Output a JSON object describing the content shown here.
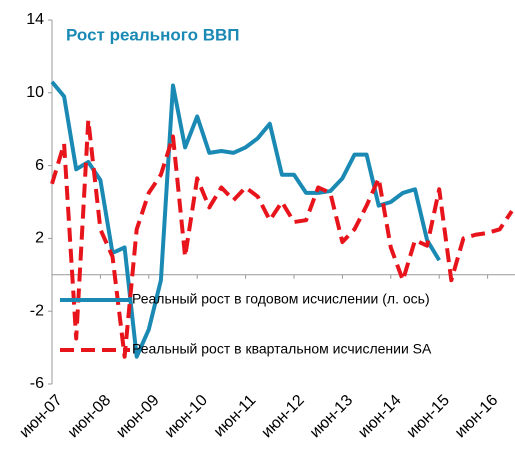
{
  "chart_data": {
    "type": "line",
    "title": "Рост реального ВВП",
    "categories": [
      "июн-07",
      null,
      null,
      null,
      "июн-08",
      null,
      null,
      null,
      "июн-09",
      null,
      null,
      null,
      "июн-10",
      null,
      null,
      null,
      "июн-11",
      null,
      null,
      null,
      "июн-12",
      null,
      null,
      null,
      "июн-13",
      null,
      null,
      null,
      "июн-14",
      null,
      null,
      null,
      "июн-15",
      null,
      null,
      null,
      "июн-16",
      null,
      null
    ],
    "series": [
      {
        "name": "Реальный рост в годовом исчислении (л. ось)",
        "color": "#1a8ab4",
        "dash": false,
        "values": [
          10.6,
          9.8,
          5.8,
          6.2,
          5.2,
          1.2,
          1.5,
          -4.5,
          -3.0,
          -0.3,
          10.4,
          7.0,
          8.7,
          6.7,
          6.8,
          6.7,
          7.0,
          7.5,
          8.3,
          5.5,
          5.5,
          4.5,
          4.5,
          4.6,
          5.3,
          6.6,
          6.6,
          3.8,
          4.0,
          4.5,
          4.7,
          1.9,
          0.8,
          null,
          null,
          null,
          null,
          null,
          null
        ]
      },
      {
        "name": "Реальный рост в квартальном исчислении SA",
        "color": "#e8141c",
        "dash": true,
        "values": [
          5.0,
          7.2,
          -3.5,
          8.5,
          2.5,
          1.0,
          -4.5,
          2.5,
          4.5,
          5.5,
          7.6,
          1.0,
          5.3,
          3.7,
          4.8,
          4.1,
          4.8,
          4.3,
          3.0,
          4.0,
          2.9,
          3.0,
          4.8,
          4.5,
          1.8,
          2.5,
          3.8,
          5.3,
          1.5,
          -0.3,
          1.9,
          1.6,
          4.7,
          -0.3,
          2.0,
          2.2,
          2.3,
          2.5,
          3.5
        ]
      }
    ],
    "ylim": [
      -6,
      14
    ],
    "yticks": [
      -6,
      -2,
      2,
      6,
      10,
      14
    ],
    "grid": false
  }
}
